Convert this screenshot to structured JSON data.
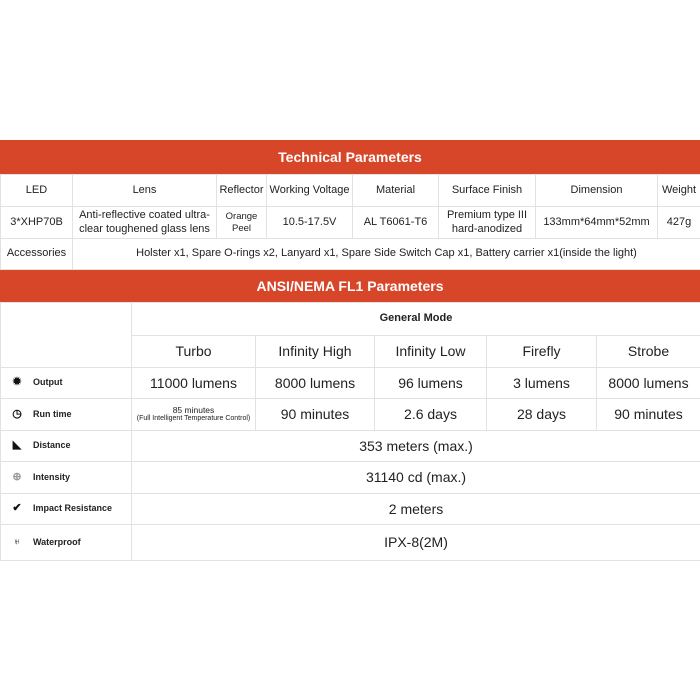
{
  "tech": {
    "title": "Technical Parameters",
    "headers": [
      "LED",
      "Lens",
      "Reflector",
      "Working Voltage",
      "Material",
      "Surface Finish",
      "Dimension",
      "Weight"
    ],
    "values": [
      "3*XHP70B",
      "Anti-reflective coated ultra-clear toughened glass lens",
      "Orange Peel",
      "10.5-17.5V",
      "AL T6061-T6",
      "Premium type III hard-anodized",
      "133mm*64mm*52mm",
      "427g"
    ],
    "accessories_label": "Accessories",
    "accessories": "Holster x1, Spare O-rings x2, Lanyard x1, Spare Side Switch Cap x1, Battery carrier x1(inside the light)"
  },
  "ansi": {
    "title": "ANSI/NEMA FL1 Parameters",
    "group": "General Mode",
    "modes": [
      "Turbo",
      "Infinity High",
      "Infinity Low",
      "Firefly",
      "Strobe"
    ],
    "output": {
      "label": "Output",
      "icon": "light-beam-icon",
      "values": [
        "11000 lumens",
        "8000 lumens",
        "96 lumens",
        "3 lumens",
        "8000 lumens"
      ]
    },
    "runtime": {
      "label": "Run time",
      "icon": "clock-icon",
      "turbo_main": "85 minutes",
      "turbo_note": "(Full Intelligent Temperature Control)",
      "values": [
        "90 minutes",
        "2.6 days",
        "28 days",
        "90 minutes"
      ]
    },
    "distance": {
      "label": "Distance",
      "icon": "distance-icon",
      "value": "353 meters (max.)"
    },
    "intensity": {
      "label": "Intensity",
      "icon": "intensity-icon",
      "value": "31140 cd (max.)"
    },
    "impact": {
      "label": "Impact Resistance",
      "icon": "impact-icon",
      "value": "2 meters"
    },
    "waterproof": {
      "label": "Waterproof",
      "icon": "waterproof-icon",
      "value": "IPX-8(2M)"
    }
  },
  "colors": {
    "accent": "#d8462a"
  }
}
